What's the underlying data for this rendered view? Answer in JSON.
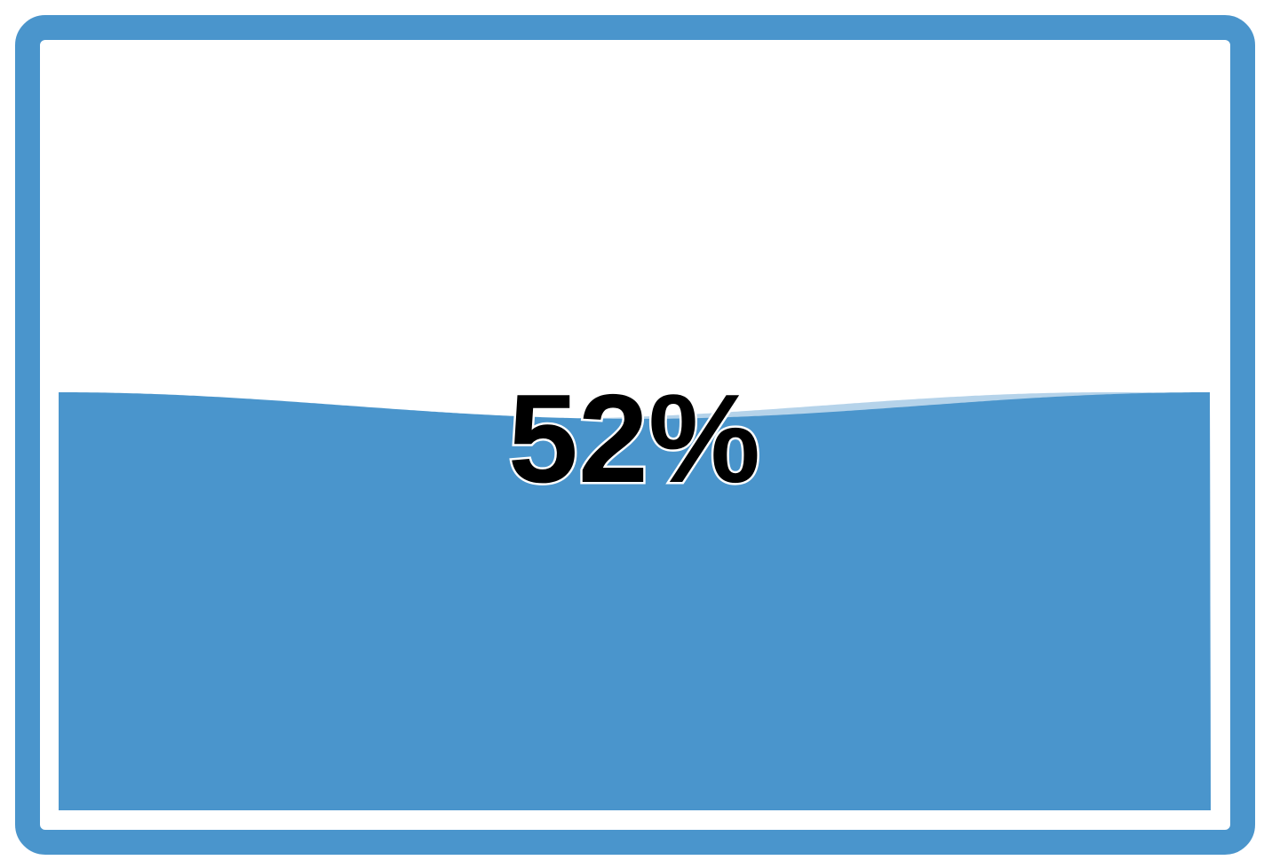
{
  "chart_data": {
    "type": "liquid-fill-gauge",
    "value": 52,
    "min": 0,
    "max": 100,
    "label": "52%",
    "colors": {
      "frame": "#4a95cc",
      "liquid": "#4a95cc",
      "wave_back": "#b5d3ea",
      "text": "#000000",
      "text_outline": "#ffffff"
    }
  }
}
